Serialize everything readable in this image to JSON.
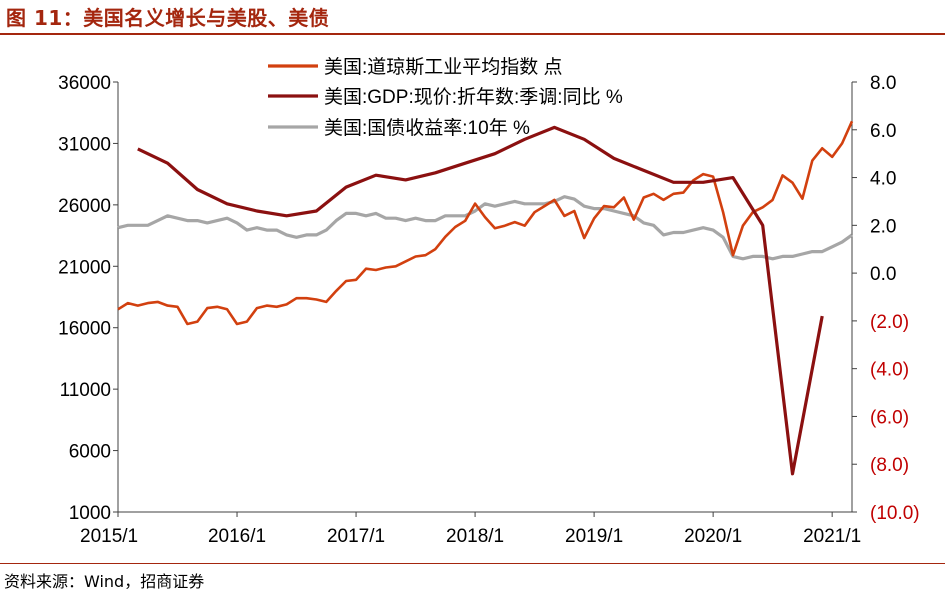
{
  "figure": {
    "title": "图 11：美国名义增长与美股、美债",
    "source": "资料来源：Wind，招商证券"
  },
  "colors": {
    "dow": "#d2400f",
    "gdp": "#8b1010",
    "bond": "#a6a6a6",
    "brand": "#a4260e",
    "negative_tick": "#c00000"
  },
  "chart_data": {
    "type": "line",
    "title": "",
    "legend_position": "top-center",
    "grid": false,
    "x_range": [
      "2015/1",
      "2021/3"
    ],
    "x_ticks": [
      "2015/1",
      "2016/1",
      "2017/1",
      "2018/1",
      "2019/1",
      "2020/1",
      "2021/1"
    ],
    "y_left": {
      "range": [
        1000,
        36000
      ],
      "ticks": [
        "1000",
        "6000",
        "11000",
        "16000",
        "21000",
        "26000",
        "31000",
        "36000"
      ]
    },
    "y_right": {
      "range": [
        -10,
        8
      ],
      "ticks": [
        "(10.0)",
        "(8.0)",
        "(6.0)",
        "(4.0)",
        "(2.0)",
        "0.0",
        "2.0",
        "4.0",
        "6.0",
        "8.0"
      ]
    },
    "series": [
      {
        "name": "美国:道琼斯工业平均指数 点",
        "axis": "left",
        "x": [
          "2015/01",
          "2015/02",
          "2015/03",
          "2015/04",
          "2015/05",
          "2015/06",
          "2015/07",
          "2015/08",
          "2015/09",
          "2015/10",
          "2015/11",
          "2015/12",
          "2016/01",
          "2016/02",
          "2016/03",
          "2016/04",
          "2016/05",
          "2016/06",
          "2016/07",
          "2016/08",
          "2016/09",
          "2016/10",
          "2016/11",
          "2016/12",
          "2017/01",
          "2017/02",
          "2017/03",
          "2017/04",
          "2017/05",
          "2017/06",
          "2017/07",
          "2017/08",
          "2017/09",
          "2017/10",
          "2017/11",
          "2017/12",
          "2018/01",
          "2018/02",
          "2018/03",
          "2018/04",
          "2018/05",
          "2018/06",
          "2018/07",
          "2018/08",
          "2018/09",
          "2018/10",
          "2018/11",
          "2018/12",
          "2019/01",
          "2019/02",
          "2019/03",
          "2019/04",
          "2019/05",
          "2019/06",
          "2019/07",
          "2019/08",
          "2019/09",
          "2019/10",
          "2019/11",
          "2019/12",
          "2020/01",
          "2020/02",
          "2020/03",
          "2020/04",
          "2020/05",
          "2020/06",
          "2020/07",
          "2020/08",
          "2020/09",
          "2020/10",
          "2020/11",
          "2020/12",
          "2021/01",
          "2021/02",
          "2021/03"
        ],
        "values": [
          17500,
          18000,
          17800,
          18000,
          18100,
          17800,
          17700,
          16300,
          16500,
          17600,
          17700,
          17500,
          16300,
          16500,
          17600,
          17800,
          17700,
          17900,
          18400,
          18400,
          18300,
          18100,
          19000,
          19800,
          19900,
          20800,
          20700,
          20900,
          21000,
          21400,
          21800,
          21900,
          22400,
          23400,
          24200,
          24700,
          26100,
          25000,
          24100,
          24300,
          24600,
          24300,
          25400,
          25900,
          26400,
          25100,
          25500,
          23300,
          24900,
          25900,
          25800,
          26600,
          24800,
          26600,
          26900,
          26400,
          26900,
          27000,
          28000,
          28500,
          28300,
          25400,
          21900,
          24300,
          25400,
          25800,
          26400,
          28400,
          27800,
          26500,
          29600,
          30600,
          29900,
          31000,
          32800
        ]
      },
      {
        "name": "美国:GDP:现价:折年数:季调:同比 %",
        "axis": "right",
        "x": [
          "2015/03",
          "2015/06",
          "2015/09",
          "2015/12",
          "2016/03",
          "2016/06",
          "2016/09",
          "2016/12",
          "2017/03",
          "2017/06",
          "2017/09",
          "2017/12",
          "2018/03",
          "2018/06",
          "2018/09",
          "2018/12",
          "2019/03",
          "2019/06",
          "2019/09",
          "2019/12",
          "2020/03",
          "2020/06",
          "2020/09",
          "2020/12"
        ],
        "values": [
          5.2,
          4.6,
          3.5,
          2.9,
          2.6,
          2.4,
          2.6,
          3.6,
          4.1,
          3.9,
          4.2,
          4.6,
          5.0,
          5.6,
          6.1,
          5.6,
          4.8,
          4.3,
          3.8,
          3.8,
          4.0,
          2.0,
          -8.4,
          -1.8
        ]
      },
      {
        "name": "美国:国债收益率:10年 %",
        "axis": "right",
        "x": [
          "2015/01",
          "2015/02",
          "2015/03",
          "2015/04",
          "2015/05",
          "2015/06",
          "2015/07",
          "2015/08",
          "2015/09",
          "2015/10",
          "2015/11",
          "2015/12",
          "2016/01",
          "2016/02",
          "2016/03",
          "2016/04",
          "2016/05",
          "2016/06",
          "2016/07",
          "2016/08",
          "2016/09",
          "2016/10",
          "2016/11",
          "2016/12",
          "2017/01",
          "2017/02",
          "2017/03",
          "2017/04",
          "2017/05",
          "2017/06",
          "2017/07",
          "2017/08",
          "2017/09",
          "2017/10",
          "2017/11",
          "2017/12",
          "2018/01",
          "2018/02",
          "2018/03",
          "2018/04",
          "2018/05",
          "2018/06",
          "2018/07",
          "2018/08",
          "2018/09",
          "2018/10",
          "2018/11",
          "2018/12",
          "2019/01",
          "2019/02",
          "2019/03",
          "2019/04",
          "2019/05",
          "2019/06",
          "2019/07",
          "2019/08",
          "2019/09",
          "2019/10",
          "2019/11",
          "2019/12",
          "2020/01",
          "2020/02",
          "2020/03",
          "2020/04",
          "2020/05",
          "2020/06",
          "2020/07",
          "2020/08",
          "2020/09",
          "2020/10",
          "2020/11",
          "2020/12",
          "2021/01",
          "2021/02",
          "2021/03"
        ],
        "values": [
          1.9,
          2.0,
          2.0,
          2.0,
          2.2,
          2.4,
          2.3,
          2.2,
          2.2,
          2.1,
          2.2,
          2.3,
          2.1,
          1.8,
          1.9,
          1.8,
          1.8,
          1.6,
          1.5,
          1.6,
          1.6,
          1.8,
          2.2,
          2.5,
          2.5,
          2.4,
          2.5,
          2.3,
          2.3,
          2.2,
          2.3,
          2.2,
          2.2,
          2.4,
          2.4,
          2.4,
          2.6,
          2.9,
          2.8,
          2.9,
          3.0,
          2.9,
          2.9,
          2.9,
          3.0,
          3.2,
          3.1,
          2.8,
          2.7,
          2.7,
          2.6,
          2.5,
          2.4,
          2.1,
          2.0,
          1.6,
          1.7,
          1.7,
          1.8,
          1.9,
          1.8,
          1.5,
          0.7,
          0.6,
          0.7,
          0.7,
          0.6,
          0.7,
          0.7,
          0.8,
          0.9,
          0.9,
          1.1,
          1.3,
          1.6
        ]
      }
    ]
  }
}
